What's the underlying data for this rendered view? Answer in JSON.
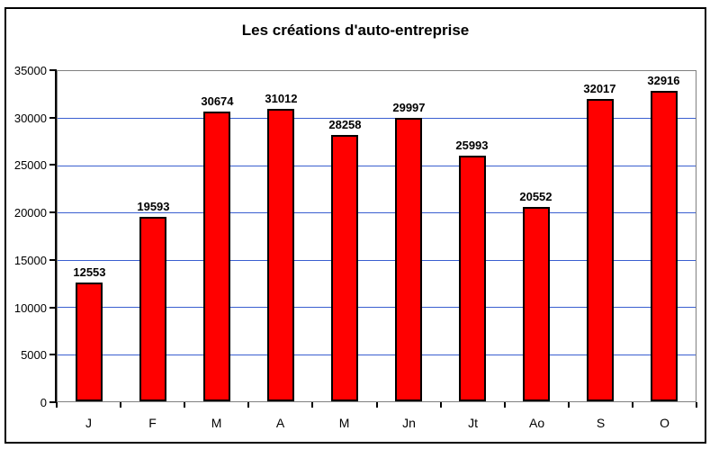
{
  "title": "Les créations d'auto-entreprise",
  "colors": {
    "bar_fill": "#FF0000",
    "bar_border": "#000000",
    "gridline": "#3A5FD0",
    "plot_border": "#808080",
    "axis": "#000000",
    "frame_border": "#000000",
    "background": "#FFFFFF",
    "text": "#000000"
  },
  "chart_data": {
    "type": "bar",
    "title": "Les créations d'auto-entreprise",
    "categories": [
      "J",
      "F",
      "M",
      "A",
      "M",
      "Jn",
      "Jt",
      "Ao",
      "S",
      "O"
    ],
    "values": [
      12553,
      19593,
      30674,
      31012,
      28258,
      29997,
      25993,
      20552,
      32017,
      32916
    ],
    "data_labels": [
      "12553",
      "19593",
      "30674",
      "31012",
      "28258",
      "29997",
      "25993",
      "20552",
      "32017",
      "32916"
    ],
    "xlabel": "",
    "ylabel": "",
    "ylim": [
      0,
      35000
    ],
    "ytick_step": 5000,
    "ytick_labels": [
      "0",
      "5000",
      "10000",
      "15000",
      "20000",
      "25000",
      "30000",
      "35000"
    ],
    "grid": "horizontal",
    "legend": "none",
    "series_name": ""
  }
}
